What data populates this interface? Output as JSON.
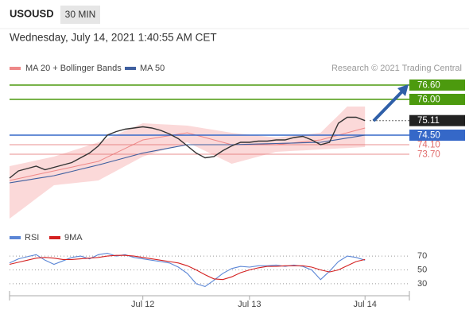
{
  "header": {
    "symbol": "USOUSD",
    "interval": "30 MIN",
    "datetime": "Wednesday, July 14, 2021 1:40:55 AM CET",
    "credit": "Research © 2021 Trading Central"
  },
  "chart_data": [
    {
      "type": "line",
      "price": {
        "color": "#333333",
        "values": [
          72.7,
          73.0,
          73.1,
          73.2,
          73.05,
          73.15,
          73.25,
          73.35,
          73.55,
          73.75,
          74.05,
          74.5,
          74.65,
          74.75,
          74.8,
          74.85,
          74.8,
          74.7,
          74.55,
          74.35,
          74.05,
          73.75,
          73.55,
          73.6,
          73.85,
          74.05,
          74.2,
          74.2,
          74.25,
          74.25,
          74.3,
          74.3,
          74.4,
          74.45,
          74.3,
          74.1,
          74.2,
          75.0,
          75.25,
          75.25,
          75.11
        ]
      },
      "bollinger": {
        "name": "MA 20 + Bollinger Bands",
        "color": "#ee8888",
        "fill": "#fbd9d9",
        "ma": [
          72.6,
          72.68,
          72.76,
          72.84,
          72.92,
          73.0,
          73.08,
          73.16,
          73.24,
          73.32,
          73.4,
          73.58,
          73.76,
          73.94,
          74.12,
          74.3,
          74.36,
          74.42,
          74.48,
          74.54,
          74.6,
          74.5,
          74.4,
          74.3,
          74.2,
          74.1,
          74.1,
          74.1,
          74.1,
          74.1,
          74.1,
          74.14,
          74.18,
          74.22,
          74.26,
          74.3,
          74.4,
          74.5,
          74.6,
          74.7,
          74.8
        ],
        "upper": [
          73.2,
          73.28,
          73.36,
          73.44,
          73.52,
          73.6,
          73.72,
          73.84,
          73.96,
          74.08,
          74.2,
          74.36,
          74.52,
          74.68,
          74.84,
          75.0,
          74.98,
          74.96,
          74.94,
          74.92,
          74.9,
          74.84,
          74.78,
          74.72,
          74.66,
          74.6,
          74.56,
          74.52,
          74.48,
          74.44,
          74.4,
          74.44,
          74.48,
          74.52,
          74.56,
          74.6,
          74.97,
          75.33,
          75.7,
          75.7,
          75.7
        ],
        "lower": [
          71.0,
          71.28,
          71.56,
          71.84,
          72.12,
          72.4,
          72.44,
          72.48,
          72.52,
          72.56,
          72.6,
          72.8,
          73.0,
          73.2,
          73.4,
          73.6,
          73.72,
          73.84,
          73.96,
          74.08,
          74.2,
          74.02,
          73.84,
          73.66,
          73.48,
          73.3,
          73.4,
          73.5,
          73.6,
          73.7,
          73.8,
          73.82,
          73.84,
          73.86,
          73.88,
          73.9,
          73.92,
          73.94,
          73.96,
          73.98,
          74.0
        ]
      },
      "series": [
        {
          "name": "MA 50",
          "color": "#3f5f9f",
          "values": [
            72.5,
            72.56,
            72.62,
            72.68,
            72.74,
            72.8,
            72.89,
            72.98,
            73.07,
            73.16,
            73.25,
            73.35,
            73.45,
            73.55,
            73.65,
            73.75,
            73.82,
            73.89,
            73.96,
            74.03,
            74.1,
            74.1,
            74.1,
            74.1,
            74.1,
            74.1,
            74.11,
            74.12,
            74.13,
            74.14,
            74.15,
            74.16,
            74.17,
            74.18,
            74.19,
            74.2,
            74.26,
            74.32,
            74.38,
            74.44,
            74.5
          ]
        }
      ],
      "levels": [
        {
          "value": 76.6,
          "label": "76.60",
          "color": "#4c9a0e",
          "boxed": true
        },
        {
          "value": 76.0,
          "label": "76.00",
          "color": "#4c9a0e",
          "boxed": true
        },
        {
          "value": 75.11,
          "label": "75.11",
          "color": "#222222",
          "boxed": true
        },
        {
          "value": 74.5,
          "label": "74.50",
          "color": "#3568c8",
          "boxed": true
        },
        {
          "value": 74.1,
          "label": "74.10",
          "color": "#e06a6a",
          "boxed": false
        },
        {
          "value": 73.7,
          "label": "73.70",
          "color": "#e06a6a",
          "boxed": false
        }
      ],
      "ylim": [
        70.8,
        77.0
      ]
    },
    {
      "type": "line",
      "categories": [
        null,
        null,
        null,
        null,
        null,
        null,
        null,
        null,
        null,
        null,
        null,
        null,
        null,
        null,
        null,
        "Jul 12",
        null,
        null,
        null,
        null,
        null,
        null,
        null,
        null,
        null,
        null,
        null,
        "Jul 13",
        null,
        null,
        null,
        null,
        null,
        null,
        null,
        null,
        null,
        null,
        null,
        null,
        "Jul 14"
      ],
      "series": [
        {
          "name": "RSI",
          "color": "#5b86d6",
          "values": [
            60,
            66,
            69,
            72,
            64,
            58,
            63,
            68,
            70,
            66,
            72,
            74,
            70,
            72,
            68,
            66,
            64,
            62,
            60,
            54,
            45,
            30,
            26,
            35,
            45,
            52,
            55,
            54,
            56,
            56,
            57,
            55,
            57,
            55,
            50,
            36,
            48,
            62,
            70,
            68,
            64
          ]
        },
        {
          "name": "9MA",
          "color": "#d42020",
          "values": [
            58,
            61,
            64,
            67,
            68,
            67,
            65,
            65,
            66,
            67,
            68,
            70,
            71,
            71,
            70,
            68,
            66,
            64,
            62,
            60,
            56,
            50,
            43,
            37,
            36,
            40,
            46,
            50,
            53,
            55,
            55,
            56,
            56,
            56,
            54,
            50,
            47,
            50,
            56,
            62,
            65
          ]
        }
      ],
      "ylim": [
        15,
        85
      ],
      "yticks": [
        30,
        50,
        70
      ],
      "grid": true
    }
  ]
}
